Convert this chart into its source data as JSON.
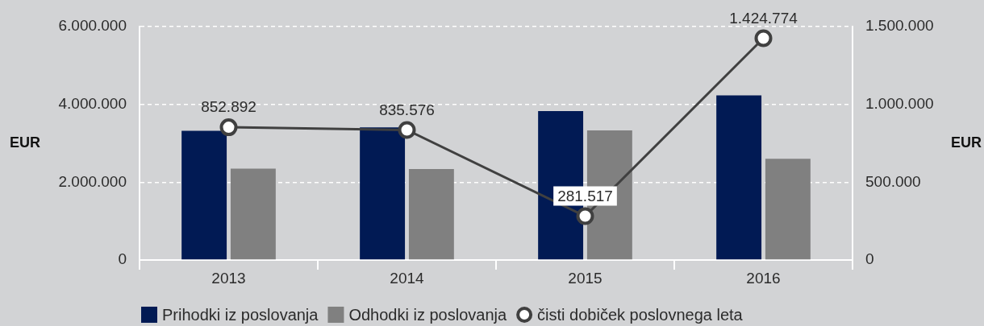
{
  "chart_data": {
    "type": "bar",
    "categories": [
      "2013",
      "2014",
      "2015",
      "2016"
    ],
    "series": [
      {
        "name": "Prihodki iz poslovanja",
        "color": "#011a54",
        "values": [
          3320000,
          3410000,
          3830000,
          4230000
        ]
      },
      {
        "name": "Odhodki iz poslovanja",
        "color": "#808080",
        "values": [
          2350000,
          2340000,
          3330000,
          2600000
        ]
      },
      {
        "name": "čisti dobiček poslovnega leta",
        "type": "line",
        "axis": "y2",
        "color": "#404040",
        "marker": "circle",
        "values": [
          852892,
          835576,
          281517,
          1424774
        ],
        "value_labels": [
          "852.892",
          "835.576",
          "281.517",
          "1.424.774"
        ]
      }
    ],
    "ylabel": "EUR",
    "y2label": "EUR",
    "ylim": [
      0,
      6000000
    ],
    "yticks": [
      0,
      {
        "value": 2000000,
        "label": "2.000.000"
      },
      {
        "value": 4000000,
        "label": "4.000.000"
      },
      {
        "value": 6000000,
        "label": "6.000.000"
      }
    ],
    "y2lim": [
      0,
      1500000
    ],
    "y2ticks": [
      0,
      {
        "value": 500000,
        "label": "500.000"
      },
      {
        "value": 1000000,
        "label": "1.000.000"
      },
      {
        "value": 1500000,
        "label": "1.500.000"
      }
    ],
    "grid": "y",
    "legend": "bottom left"
  }
}
